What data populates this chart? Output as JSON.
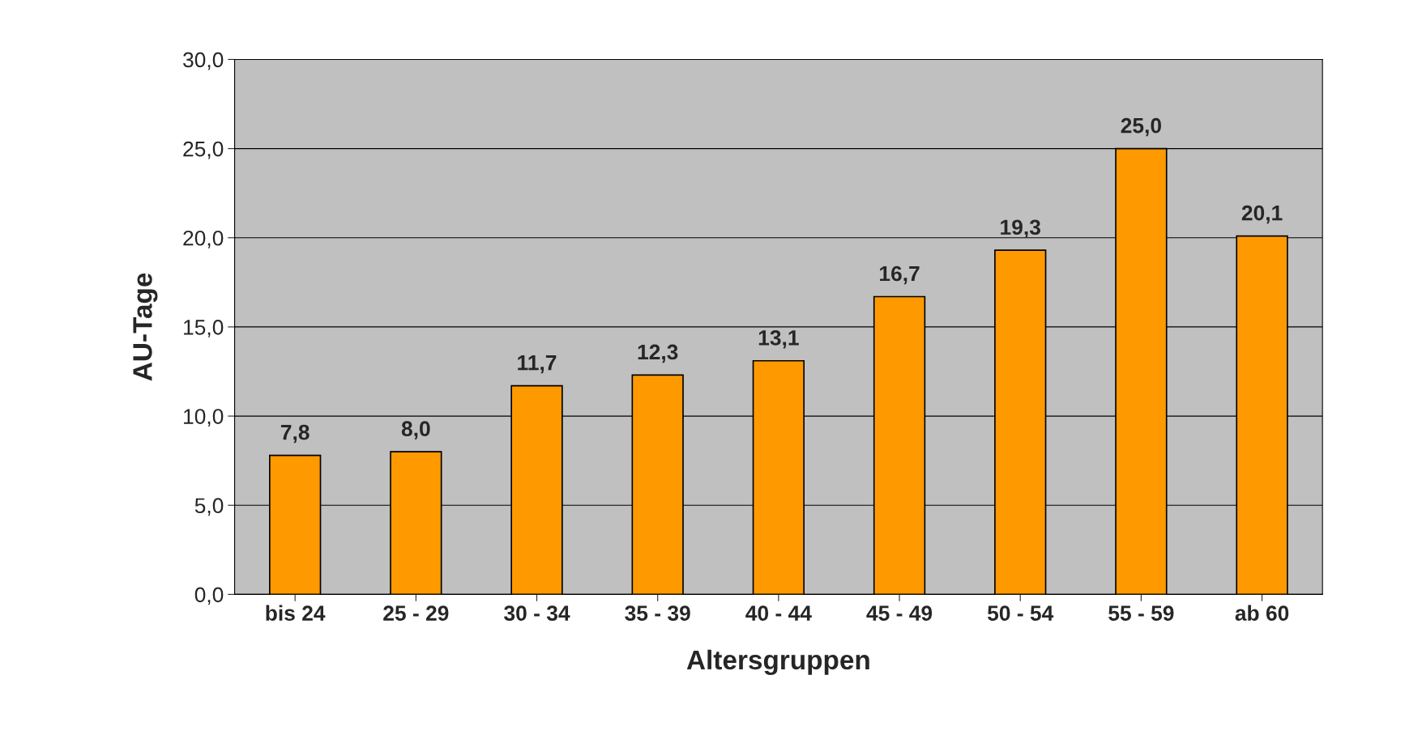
{
  "chart_data": {
    "type": "bar",
    "xlabel": "Altersgruppen",
    "ylabel": "AU-Tage",
    "categories": [
      "bis 24",
      "25 - 29",
      "30 - 34",
      "35 - 39",
      "40 - 44",
      "45 - 49",
      "50 - 54",
      "55 - 59",
      "ab 60"
    ],
    "values": [
      7.8,
      8.0,
      11.7,
      12.3,
      13.1,
      16.7,
      19.3,
      25.0,
      20.1
    ],
    "value_labels": [
      "7,8",
      "8,0",
      "11,7",
      "12,3",
      "13,1",
      "16,7",
      "19,3",
      "25,0",
      "20,1"
    ],
    "color": "#ff9900",
    "ylim": [
      0,
      30
    ],
    "yticks": [
      {
        "value": 0,
        "label": "0,0"
      },
      {
        "value": 5,
        "label": "5,0"
      },
      {
        "value": 10,
        "label": "10,0"
      },
      {
        "value": 15,
        "label": "15,0"
      },
      {
        "value": 20,
        "label": "20,0"
      },
      {
        "value": 25,
        "label": "25,0"
      },
      {
        "value": 30,
        "label": "30,0"
      }
    ],
    "grid": "y",
    "legend": false
  }
}
